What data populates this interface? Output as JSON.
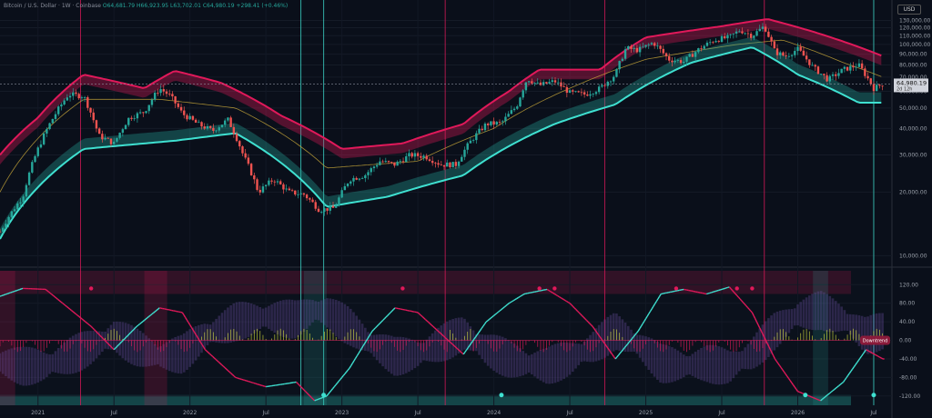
{
  "header": {
    "title": "Bitcoin / U.S. Dollar · 1W · Coinbase",
    "o": "O64,681.79",
    "h": "H66,923.95",
    "l": "L63,702.01",
    "c": "C64,980.19",
    "change": "+298.41 (+0.46%)",
    "currency": "USD"
  },
  "price_label": {
    "value": "64,980.19",
    "countdown": "2d 12h"
  },
  "status_badge": "Downtrend",
  "colors": {
    "bg": "#0a0f1a",
    "pink": "#e0195a",
    "cyan": "#3fe0d0",
    "green": "#26a69a",
    "red": "#ef5350",
    "purple": "#6a4fa0"
  },
  "chart_data": [
    {
      "type": "candlestick",
      "scale": "log",
      "ylim": [
        9000,
        150000
      ],
      "y_ticks": [
        "10,000.00",
        "20,000.00",
        "30,000.00",
        "40,000.00",
        "50,000.00",
        "60,000.00",
        "70,000.00",
        "80,000.00",
        "90,000.00",
        "100,000.00",
        "110,000.00",
        "120,000.00",
        "130,000.00"
      ],
      "x_ticks": [
        "2021",
        "Jul",
        "2022",
        "Jul",
        "2023",
        "Jul",
        "2024",
        "Jul",
        "2025",
        "Jul",
        "2026",
        "Jul"
      ],
      "x_range": [
        "2020-10",
        "2026-08"
      ],
      "close_series": {
        "t": [
          2020.75,
          2020.9,
          2021.0,
          2021.1,
          2021.2,
          2021.3,
          2021.4,
          2021.5,
          2021.6,
          2021.7,
          2021.8,
          2021.87,
          2021.95,
          2022.05,
          2022.15,
          2022.25,
          2022.35,
          2022.45,
          2022.55,
          2022.65,
          2022.75,
          2022.85,
          2022.95,
          2023.05,
          2023.15,
          2023.25,
          2023.35,
          2023.45,
          2023.55,
          2023.65,
          2023.75,
          2023.85,
          2023.95,
          2024.05,
          2024.15,
          2024.22,
          2024.3,
          2024.4,
          2024.5,
          2024.6,
          2024.7,
          2024.8,
          2024.87,
          2024.95,
          2025.05,
          2025.15,
          2025.25,
          2025.35,
          2025.45,
          2025.55,
          2025.62,
          2025.7,
          2025.78,
          2025.85,
          2025.92,
          2026.0,
          2026.1,
          2026.2,
          2026.3,
          2026.4,
          2026.5,
          2026.56
        ],
        "v": [
          13000,
          19000,
          32000,
          45000,
          58000,
          57000,
          37000,
          34000,
          45000,
          48000,
          62000,
          57000,
          47000,
          42000,
          39000,
          44000,
          30000,
          20000,
          23000,
          20000,
          19500,
          16500,
          16800,
          23000,
          24000,
          28000,
          27000,
          30000,
          29500,
          27000,
          27000,
          35000,
          42000,
          42500,
          51000,
          69000,
          64000,
          67000,
          59000,
          58000,
          62000,
          72000,
          96000,
          94000,
          102000,
          85000,
          83000,
          95000,
          105000,
          108000,
          117000,
          110000,
          122000,
          92000,
          88000,
          95000,
          78000,
          68000,
          76000,
          80000,
          62000,
          64980
        ]
      },
      "bands": {
        "upper": [
          [
            2020.75,
            30000
          ],
          [
            2021.0,
            45000
          ],
          [
            2021.3,
            72000
          ],
          [
            2021.7,
            62000
          ],
          [
            2021.9,
            75000
          ],
          [
            2022.2,
            66000
          ],
          [
            2022.6,
            46000
          ],
          [
            2023.0,
            32000
          ],
          [
            2023.4,
            34000
          ],
          [
            2023.8,
            42000
          ],
          [
            2024.1,
            60000
          ],
          [
            2024.3,
            76000
          ],
          [
            2024.7,
            76000
          ],
          [
            2025.0,
            108000
          ],
          [
            2025.5,
            122000
          ],
          [
            2025.8,
            132000
          ],
          [
            2026.1,
            115000
          ],
          [
            2026.56,
            88000
          ]
        ],
        "basis": [
          [
            2020.75,
            20000
          ],
          [
            2021.3,
            55000
          ],
          [
            2021.8,
            55000
          ],
          [
            2022.3,
            50000
          ],
          [
            2022.9,
            26000
          ],
          [
            2023.5,
            28000
          ],
          [
            2024.0,
            40000
          ],
          [
            2024.5,
            62000
          ],
          [
            2025.0,
            85000
          ],
          [
            2025.6,
            100000
          ],
          [
            2025.9,
            105000
          ],
          [
            2026.3,
            82000
          ],
          [
            2026.56,
            70000
          ]
        ],
        "lower": [
          [
            2020.75,
            12000
          ],
          [
            2021.3,
            32000
          ],
          [
            2021.9,
            35000
          ],
          [
            2022.3,
            38000
          ],
          [
            2022.9,
            17000
          ],
          [
            2023.3,
            19000
          ],
          [
            2023.8,
            24000
          ],
          [
            2024.4,
            42000
          ],
          [
            2024.8,
            52000
          ],
          [
            2025.3,
            82000
          ],
          [
            2025.7,
            97000
          ],
          [
            2026.0,
            72000
          ],
          [
            2026.4,
            53000
          ],
          [
            2026.56,
            53000
          ]
        ]
      },
      "vlines": [
        {
          "t": 2021.28,
          "color": "#e0195a"
        },
        {
          "t": 2022.73,
          "color": "#3fe0d0"
        },
        {
          "t": 2022.88,
          "color": "#3fe0d0"
        },
        {
          "t": 2023.68,
          "color": "#e0195a"
        },
        {
          "t": 2024.73,
          "color": "#e0195a"
        },
        {
          "t": 2025.78,
          "color": "#e0195a"
        },
        {
          "t": 2026.5,
          "color": "#3fe0d0"
        }
      ]
    },
    {
      "type": "line",
      "name": "Downtrend",
      "ylim": [
        -140,
        150
      ],
      "y_ticks": [
        "120.00",
        "80.00",
        "40.00",
        "0.00",
        "-40.00",
        "-80.00",
        "-120.00"
      ],
      "oscillator": {
        "t": [
          2020.75,
          2020.9,
          2021.05,
          2021.2,
          2021.35,
          2021.5,
          2021.65,
          2021.8,
          2021.95,
          2022.1,
          2022.3,
          2022.5,
          2022.7,
          2022.82,
          2022.9,
          2023.05,
          2023.2,
          2023.35,
          2023.5,
          2023.65,
          2023.8,
          2023.95,
          2024.1,
          2024.2,
          2024.35,
          2024.5,
          2024.65,
          2024.8,
          2024.95,
          2025.1,
          2025.25,
          2025.4,
          2025.55,
          2025.7,
          2025.85,
          2026.0,
          2026.15,
          2026.3,
          2026.45,
          2026.56
        ],
        "v": [
          95,
          112,
          110,
          70,
          30,
          -20,
          30,
          70,
          60,
          -20,
          -80,
          -100,
          -90,
          -130,
          -120,
          -60,
          20,
          70,
          60,
          15,
          -30,
          40,
          80,
          100,
          110,
          80,
          30,
          -40,
          20,
          100,
          110,
          100,
          115,
          60,
          -40,
          -110,
          -130,
          -90,
          -20,
          -40
        ]
      },
      "shade_zones": [
        {
          "from": 2022.75,
          "to": 2022.9,
          "color": "green"
        },
        {
          "from": 2026.1,
          "to": 2026.2,
          "color": "green"
        },
        {
          "from": 2021.7,
          "to": 2021.85,
          "color": "red"
        },
        {
          "from": 2020.75,
          "to": 2020.85,
          "color": "red"
        }
      ]
    }
  ]
}
